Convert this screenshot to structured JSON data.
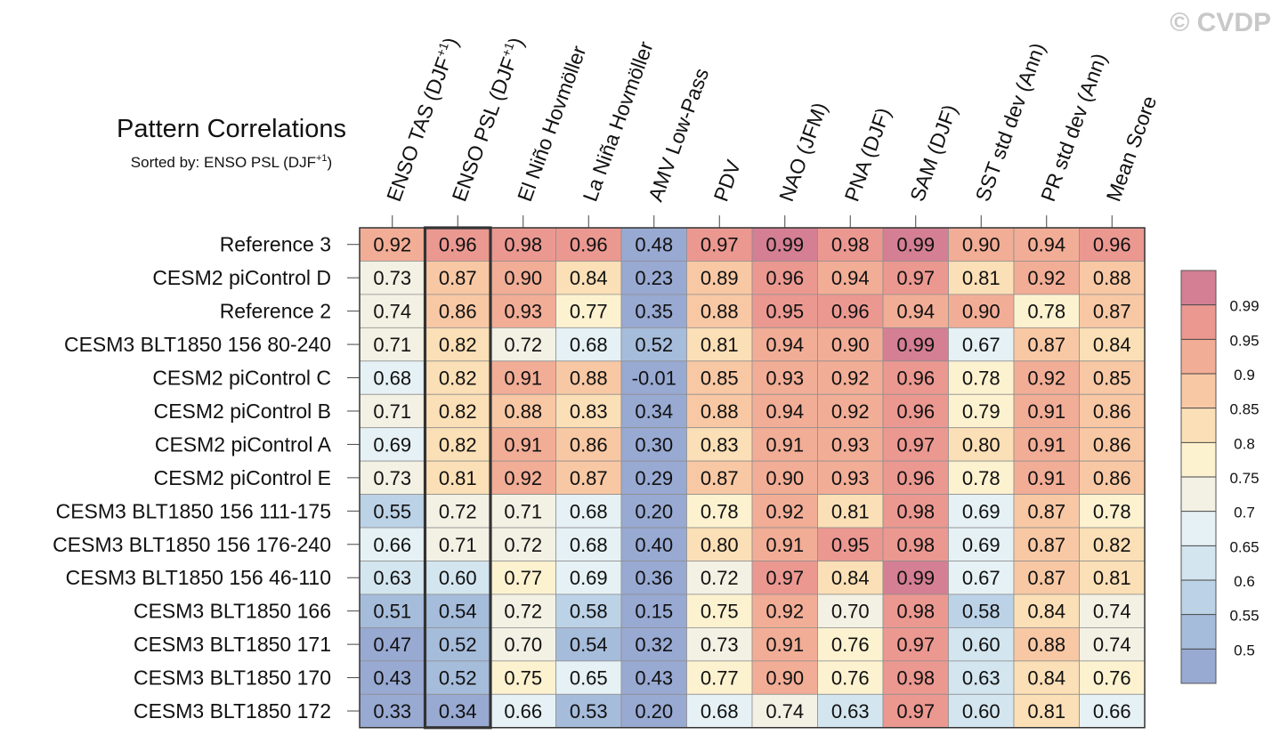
{
  "watermark": "© CVDP",
  "chart_data": {
    "type": "heatmap",
    "title": "Pattern Correlations",
    "subtitle_prefix": "Sorted by: ENSO PSL (DJF",
    "subtitle_sup": "+1",
    "subtitle_suffix": ")",
    "highlighted_column": 1,
    "columns": [
      {
        "label": "ENSO TAS (DJF",
        "sup": "+1",
        "suffix": ")"
      },
      {
        "label": "ENSO PSL (DJF",
        "sup": "+1",
        "suffix": ")"
      },
      {
        "label": "El Niño Hovmöller"
      },
      {
        "label": "La Niña Hovmöller"
      },
      {
        "label": "AMV Low-Pass"
      },
      {
        "label": "PDV"
      },
      {
        "label": "NAO (JFM)"
      },
      {
        "label": "PNA (DJF)"
      },
      {
        "label": "SAM (DJF)"
      },
      {
        "label": "SST std dev (Ann)"
      },
      {
        "label": "PR std dev (Ann)"
      },
      {
        "label": "Mean Score"
      }
    ],
    "rows": [
      {
        "name": "Reference 3",
        "values": [
          "0.92",
          "0.96",
          "0.98",
          "0.96",
          "0.48",
          "0.97",
          "0.99",
          "0.98",
          "0.99",
          "0.90",
          "0.94",
          "0.96"
        ]
      },
      {
        "name": "CESM2 piControl D",
        "values": [
          "0.73",
          "0.87",
          "0.90",
          "0.84",
          "0.23",
          "0.89",
          "0.96",
          "0.94",
          "0.97",
          "0.81",
          "0.92",
          "0.88"
        ]
      },
      {
        "name": "Reference 2",
        "values": [
          "0.74",
          "0.86",
          "0.93",
          "0.77",
          "0.35",
          "0.88",
          "0.95",
          "0.96",
          "0.94",
          "0.90",
          "0.78",
          "0.87"
        ]
      },
      {
        "name": "CESM3 BLT1850 156 80-240",
        "values": [
          "0.71",
          "0.82",
          "0.72",
          "0.68",
          "0.52",
          "0.81",
          "0.94",
          "0.90",
          "0.99",
          "0.67",
          "0.87",
          "0.84"
        ]
      },
      {
        "name": "CESM2 piControl C",
        "values": [
          "0.68",
          "0.82",
          "0.91",
          "0.88",
          "-0.01",
          "0.85",
          "0.93",
          "0.92",
          "0.96",
          "0.78",
          "0.92",
          "0.85"
        ]
      },
      {
        "name": "CESM2 piControl B",
        "values": [
          "0.71",
          "0.82",
          "0.88",
          "0.83",
          "0.34",
          "0.88",
          "0.94",
          "0.92",
          "0.96",
          "0.79",
          "0.91",
          "0.86"
        ]
      },
      {
        "name": "CESM2 piControl A",
        "values": [
          "0.69",
          "0.82",
          "0.91",
          "0.86",
          "0.30",
          "0.83",
          "0.91",
          "0.93",
          "0.97",
          "0.80",
          "0.91",
          "0.86"
        ]
      },
      {
        "name": "CESM2 piControl E",
        "values": [
          "0.73",
          "0.81",
          "0.92",
          "0.87",
          "0.29",
          "0.87",
          "0.90",
          "0.93",
          "0.96",
          "0.78",
          "0.91",
          "0.86"
        ]
      },
      {
        "name": "CESM3 BLT1850 156 111-175",
        "values": [
          "0.55",
          "0.72",
          "0.71",
          "0.68",
          "0.20",
          "0.78",
          "0.92",
          "0.81",
          "0.98",
          "0.69",
          "0.87",
          "0.78"
        ]
      },
      {
        "name": "CESM3 BLT1850 156 176-240",
        "values": [
          "0.66",
          "0.71",
          "0.72",
          "0.68",
          "0.40",
          "0.80",
          "0.91",
          "0.95",
          "0.98",
          "0.69",
          "0.87",
          "0.82"
        ]
      },
      {
        "name": "CESM3 BLT1850 156 46-110",
        "values": [
          "0.63",
          "0.60",
          "0.77",
          "0.69",
          "0.36",
          "0.72",
          "0.97",
          "0.84",
          "0.99",
          "0.67",
          "0.87",
          "0.81"
        ]
      },
      {
        "name": "CESM3 BLT1850 166",
        "values": [
          "0.51",
          "0.54",
          "0.72",
          "0.58",
          "0.15",
          "0.75",
          "0.92",
          "0.70",
          "0.98",
          "0.58",
          "0.84",
          "0.74"
        ]
      },
      {
        "name": "CESM3 BLT1850 171",
        "values": [
          "0.47",
          "0.52",
          "0.70",
          "0.54",
          "0.32",
          "0.73",
          "0.91",
          "0.76",
          "0.97",
          "0.60",
          "0.88",
          "0.74"
        ]
      },
      {
        "name": "CESM3 BLT1850 170",
        "values": [
          "0.43",
          "0.52",
          "0.75",
          "0.65",
          "0.43",
          "0.77",
          "0.90",
          "0.76",
          "0.98",
          "0.63",
          "0.84",
          "0.76"
        ]
      },
      {
        "name": "CESM3 BLT1850 172",
        "values": [
          "0.33",
          "0.34",
          "0.66",
          "0.53",
          "0.20",
          "0.68",
          "0.74",
          "0.63",
          "0.97",
          "0.60",
          "0.81",
          "0.66"
        ]
      }
    ],
    "colorbar": {
      "levels": [
        "0.99",
        "0.95",
        "0.9",
        "0.85",
        "0.8",
        "0.75",
        "0.7",
        "0.65",
        "0.6",
        "0.55",
        "0.5"
      ],
      "thresholds": [
        0.5,
        0.55,
        0.6,
        0.65,
        0.7,
        0.75,
        0.8,
        0.85,
        0.9,
        0.95,
        0.99
      ],
      "colors": [
        "#98a9d2",
        "#a6bcdb",
        "#bcd2e6",
        "#d3e5ef",
        "#e6f1f5",
        "#f3f1e4",
        "#fdf2d0",
        "#fbdfb6",
        "#f8c8a4",
        "#f2ad96",
        "#eb9891",
        "#d47f93"
      ]
    }
  }
}
